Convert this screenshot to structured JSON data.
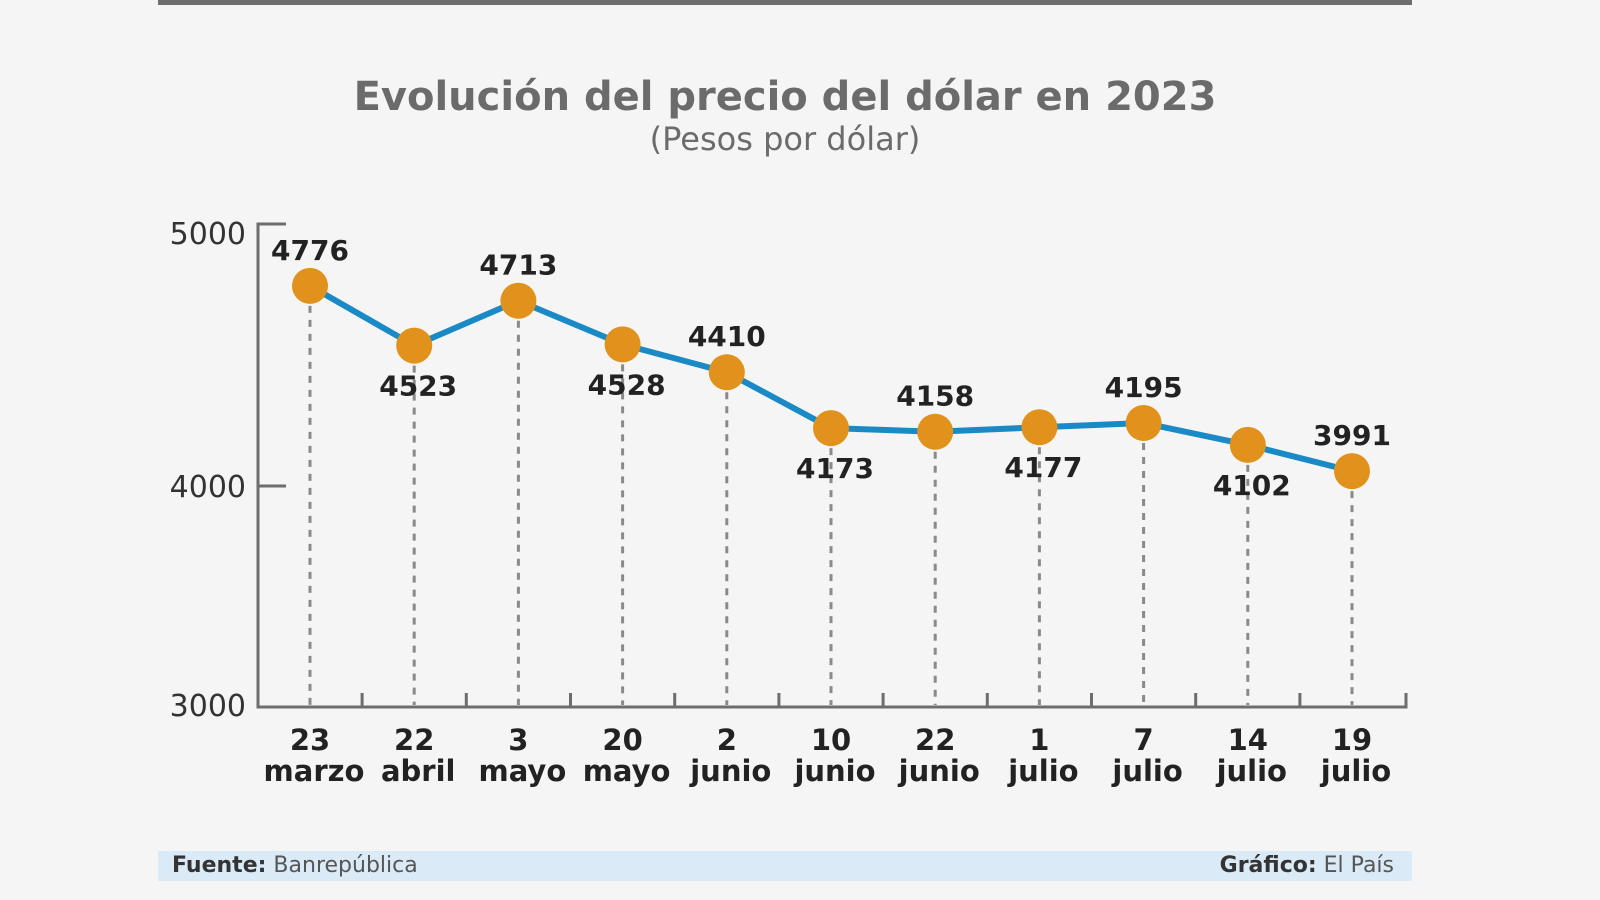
{
  "chart_data": {
    "type": "line",
    "title": "Evolución del precio del dólar en 2023",
    "subtitle": "(Pesos por dólar)",
    "ylim": [
      3000,
      5000
    ],
    "yticks": [
      "5000",
      "4000",
      "3000"
    ],
    "grid": false,
    "categories": [
      {
        "day": "23",
        "month": "marzo"
      },
      {
        "day": "22",
        "month": "abril"
      },
      {
        "day": "3",
        "month": "mayo"
      },
      {
        "day": "20",
        "month": "mayo"
      },
      {
        "day": "2",
        "month": "junio"
      },
      {
        "day": "10",
        "month": "junio"
      },
      {
        "day": "22",
        "month": "junio"
      },
      {
        "day": "1",
        "month": "julio"
      },
      {
        "day": "7",
        "month": "julio"
      },
      {
        "day": "14",
        "month": "julio"
      },
      {
        "day": "19",
        "month": "julio"
      }
    ],
    "values": [
      4776,
      4523,
      4713,
      4528,
      4410,
      4173,
      4158,
      4177,
      4195,
      4102,
      3991
    ],
    "colors": {
      "line": "#1a8ac6",
      "marker": "#e0921c",
      "axis": "#6d6d6d",
      "guide": "#8a8a8a"
    }
  },
  "footer": {
    "source_label": "Fuente:",
    "source_value": "Banrepública",
    "credit_label": "Gráfico:",
    "credit_value": "El País"
  }
}
